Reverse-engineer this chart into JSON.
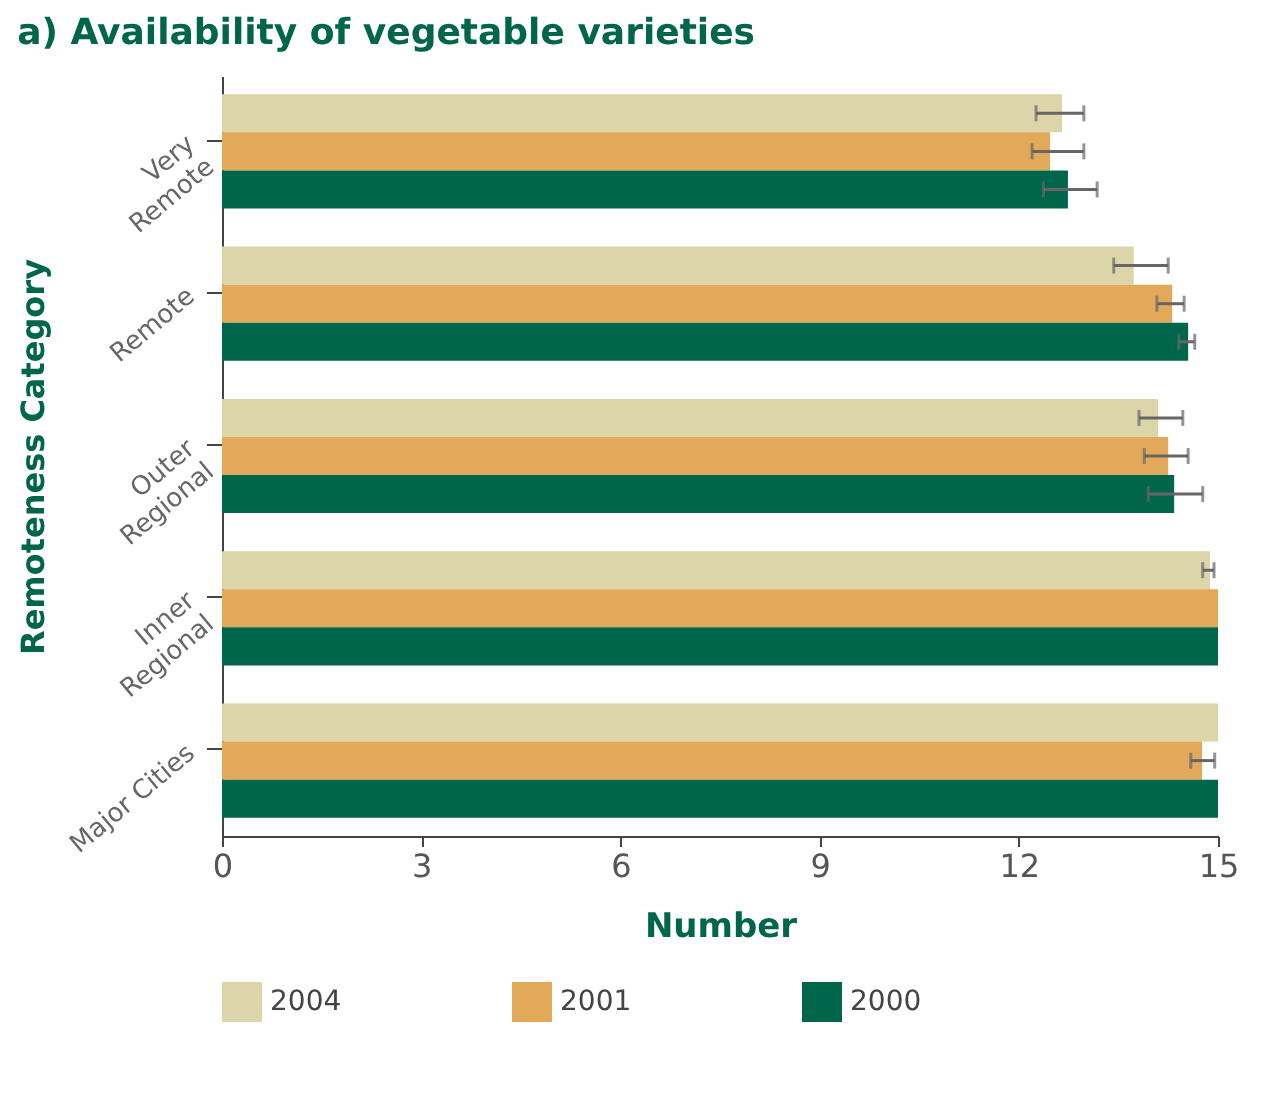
{
  "chart_data": {
    "type": "bar",
    "orientation": "horizontal",
    "title": "a) Availability of vegetable varieties",
    "xlabel": "Number",
    "ylabel": "Remoteness Category",
    "categories": [
      "Very\nRemote",
      "Remote",
      "Outer\nRegional",
      "Inner\nRegional",
      "Major Cities"
    ],
    "series": [
      {
        "name": "2004",
        "color": "#dcd5a9",
        "values": [
          12.65,
          13.73,
          14.1,
          14.88,
          15
        ],
        "errors": [
          [
            12.26,
            12.98
          ],
          [
            13.43,
            14.25
          ],
          [
            13.81,
            14.47
          ],
          [
            14.77,
            14.94
          ],
          null
        ]
      },
      {
        "name": "2001",
        "color": "#e3a95b",
        "values": [
          12.47,
          14.31,
          14.25,
          15,
          14.76
        ],
        "errors": [
          [
            12.2,
            12.98
          ],
          [
            14.08,
            14.49
          ],
          [
            13.89,
            14.55
          ],
          null,
          [
            14.59,
            14.95
          ]
        ]
      },
      {
        "name": "2000",
        "color": "#00664b",
        "values": [
          12.74,
          14.55,
          14.34,
          15,
          15
        ],
        "errors": [
          [
            12.37,
            13.18
          ],
          [
            14.41,
            14.65
          ],
          [
            13.95,
            14.77
          ],
          null,
          null
        ]
      }
    ],
    "xlim": [
      0,
      15
    ],
    "xticks": [
      0,
      3,
      6,
      9,
      12,
      15
    ],
    "grid": false,
    "legend": "bottom"
  }
}
